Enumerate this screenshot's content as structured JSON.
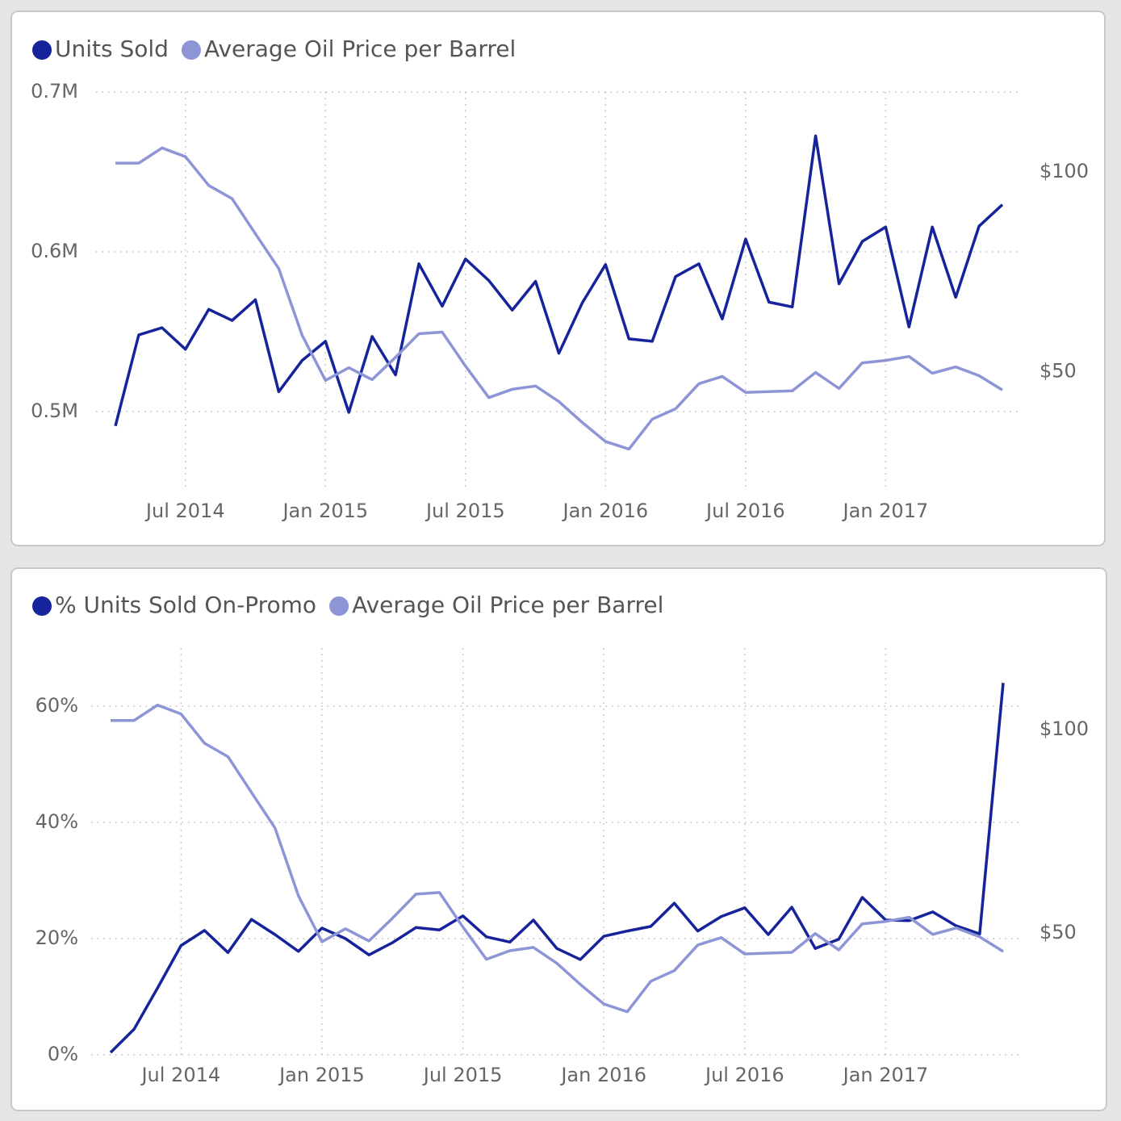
{
  "chart_data": [
    {
      "type": "line",
      "x": [
        "2014-04",
        "2014-05",
        "2014-06",
        "2014-07",
        "2014-08",
        "2014-09",
        "2014-10",
        "2014-11",
        "2014-12",
        "2015-01",
        "2015-02",
        "2015-03",
        "2015-04",
        "2015-05",
        "2015-06",
        "2015-07",
        "2015-08",
        "2015-09",
        "2015-10",
        "2015-11",
        "2015-12",
        "2016-01",
        "2016-02",
        "2016-03",
        "2016-04",
        "2016-05",
        "2016-06",
        "2016-07",
        "2016-08",
        "2016-09",
        "2016-10",
        "2016-11",
        "2016-12",
        "2017-01",
        "2017-02",
        "2017-03",
        "2017-04",
        "2017-05",
        "2017-06"
      ],
      "series": [
        {
          "name": "Units Sold",
          "color": "#16239a",
          "values": [
            491000,
            548000,
            552500,
            539000,
            564000,
            557000,
            570000,
            512500,
            532000,
            544000,
            499500,
            547000,
            523000,
            592500,
            566000,
            595500,
            582000,
            563500,
            581500,
            536500,
            568000,
            592000,
            545500,
            544000,
            584500,
            592500,
            558000,
            608000,
            568500,
            565500,
            672500,
            580000,
            606500,
            615500,
            553000,
            615500,
            571500,
            616000,
            629500
          ]
        },
        {
          "name": "Average Oil Price per Barrel",
          "color": "#8e95d6",
          "axis": "y2",
          "values": [
            102.2,
            102.2,
            106,
            103.8,
            96.6,
            93.3,
            84.5,
            75.8,
            59.1,
            47.8,
            51,
            48,
            53.6,
            59.5,
            59.9,
            51.4,
            43.5,
            45.6,
            46.4,
            42.5,
            37.3,
            32.5,
            30.6,
            38.1,
            40.7,
            47,
            48.8,
            44.8,
            45,
            45.2,
            49.8,
            45.8,
            52.2,
            52.8,
            53.8,
            49.6,
            51.2,
            49,
            45.4
          ]
        }
      ],
      "ylim": [
        450000,
        700000
      ],
      "yticks": [
        {
          "value": 500000,
          "label": "0.5M"
        },
        {
          "value": 600000,
          "label": "0.6M"
        },
        {
          "value": 700000,
          "label": "0.7M"
        }
      ],
      "y2lim": [
        20,
        120
      ],
      "y2ticks": [
        {
          "value": 50,
          "label": "$50"
        },
        {
          "value": 100,
          "label": "$100"
        }
      ],
      "xticks": [
        {
          "value": "2014-07",
          "label": "Jul 2014"
        },
        {
          "value": "2015-01",
          "label": "Jan 2015"
        },
        {
          "value": "2015-07",
          "label": "Jul 2015"
        },
        {
          "value": "2016-01",
          "label": "Jan 2016"
        },
        {
          "value": "2016-07",
          "label": "Jul 2016"
        },
        {
          "value": "2017-01",
          "label": "Jan 2017"
        }
      ],
      "grid": true,
      "legend": "top-left"
    },
    {
      "type": "line",
      "x": [
        "2014-04",
        "2014-05",
        "2014-06",
        "2014-07",
        "2014-08",
        "2014-09",
        "2014-10",
        "2014-11",
        "2014-12",
        "2015-01",
        "2015-02",
        "2015-03",
        "2015-04",
        "2015-05",
        "2015-06",
        "2015-07",
        "2015-08",
        "2015-09",
        "2015-10",
        "2015-11",
        "2015-12",
        "2016-01",
        "2016-02",
        "2016-03",
        "2016-04",
        "2016-05",
        "2016-06",
        "2016-07",
        "2016-08",
        "2016-09",
        "2016-10",
        "2016-11",
        "2016-12",
        "2017-01",
        "2017-02",
        "2017-03",
        "2017-04",
        "2017-05",
        "2017-06"
      ],
      "series": [
        {
          "name": "% Units Sold On-Promo",
          "color": "#16239a",
          "values": [
            0.4,
            4.4,
            11.5,
            18.8,
            21.4,
            17.6,
            23.3,
            20.7,
            17.8,
            21.8,
            20,
            17.2,
            19.3,
            21.9,
            21.5,
            23.9,
            20.3,
            19.4,
            23.2,
            18.3,
            16.4,
            20.4,
            21.3,
            22.1,
            26.1,
            21.3,
            23.8,
            25.3,
            20.7,
            25.4,
            18.3,
            19.9,
            27.1,
            23.2,
            23.1,
            24.6,
            22.2,
            20.8,
            64
          ]
        },
        {
          "name": "Average Oil Price per Barrel",
          "color": "#8e95d6",
          "axis": "y2",
          "values": [
            102.2,
            102.2,
            106,
            103.8,
            96.6,
            93.3,
            84.5,
            75.8,
            59.1,
            47.8,
            51,
            48,
            53.6,
            59.5,
            59.9,
            51.4,
            43.5,
            45.6,
            46.4,
            42.5,
            37.3,
            32.5,
            30.6,
            38.1,
            40.7,
            47,
            48.8,
            44.8,
            45,
            45.2,
            49.8,
            45.8,
            52.2,
            52.8,
            53.8,
            49.6,
            51.2,
            49,
            45.4
          ]
        }
      ],
      "ylim": [
        0,
        70
      ],
      "yticks": [
        {
          "value": 0,
          "label": "0%"
        },
        {
          "value": 20,
          "label": "20%"
        },
        {
          "value": 40,
          "label": "40%"
        },
        {
          "value": 60,
          "label": "60%"
        }
      ],
      "y2lim": [
        20,
        120
      ],
      "y2ticks": [
        {
          "value": 50,
          "label": "$50"
        },
        {
          "value": 100,
          "label": "$100"
        }
      ],
      "xticks": [
        {
          "value": "2014-07",
          "label": "Jul 2014"
        },
        {
          "value": "2015-01",
          "label": "Jan 2015"
        },
        {
          "value": "2015-07",
          "label": "Jul 2015"
        },
        {
          "value": "2016-01",
          "label": "Jan 2016"
        },
        {
          "value": "2016-07",
          "label": "Jul 2016"
        },
        {
          "value": "2017-01",
          "label": "Jan 2017"
        }
      ],
      "grid": true,
      "legend": "top-left"
    }
  ]
}
